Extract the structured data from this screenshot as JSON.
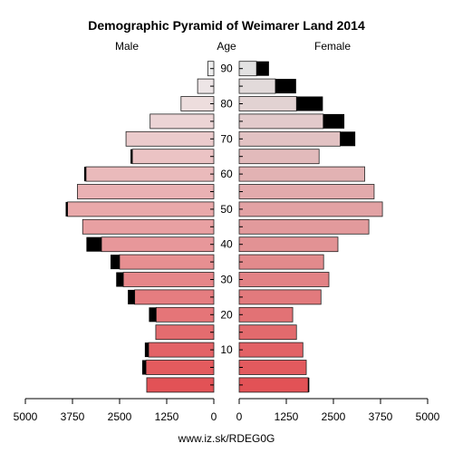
{
  "chart_data": {
    "type": "bar",
    "title": "Demographic Pyramid of Weimarer Land 2014",
    "left_header": "Male",
    "center_header": "Age",
    "right_header": "Female",
    "source": "www.iz.sk/RDEG0G",
    "xlim": [
      0,
      5000
    ],
    "x_ticks": [
      "5000",
      "3750",
      "2500",
      "1250",
      "0",
      "0",
      "1250",
      "2500",
      "3750",
      "5000"
    ],
    "age_ticks": [
      "10",
      "20",
      "30",
      "40",
      "50",
      "60",
      "70",
      "80",
      "90"
    ],
    "age_groups": [
      "0-4",
      "5-9",
      "10-14",
      "15-19",
      "20-24",
      "25-29",
      "30-34",
      "35-39",
      "40-44",
      "45-49",
      "50-54",
      "55-59",
      "60-64",
      "65-69",
      "70-74",
      "75-79",
      "80-84",
      "85-89",
      "90+"
    ],
    "series": [
      {
        "name": "Male",
        "values": [
          1780,
          1800,
          1730,
          1540,
          1530,
          2100,
          2400,
          2500,
          2980,
          3480,
          3880,
          3620,
          3390,
          2160,
          2330,
          1690,
          870,
          430,
          160
        ],
        "excess": [
          0,
          100,
          100,
          0,
          190,
          180,
          190,
          240,
          400,
          0,
          50,
          0,
          50,
          50,
          0,
          0,
          0,
          0,
          0
        ]
      },
      {
        "name": "Female",
        "values": [
          1830,
          1780,
          1690,
          1520,
          1420,
          2170,
          2380,
          2240,
          2620,
          3440,
          3800,
          3580,
          3330,
          2120,
          2680,
          2230,
          1520,
          960,
          460
        ],
        "excess": [
          30,
          0,
          0,
          0,
          0,
          0,
          0,
          0,
          0,
          0,
          0,
          0,
          0,
          0,
          400,
          560,
          700,
          550,
          330
        ]
      }
    ]
  }
}
